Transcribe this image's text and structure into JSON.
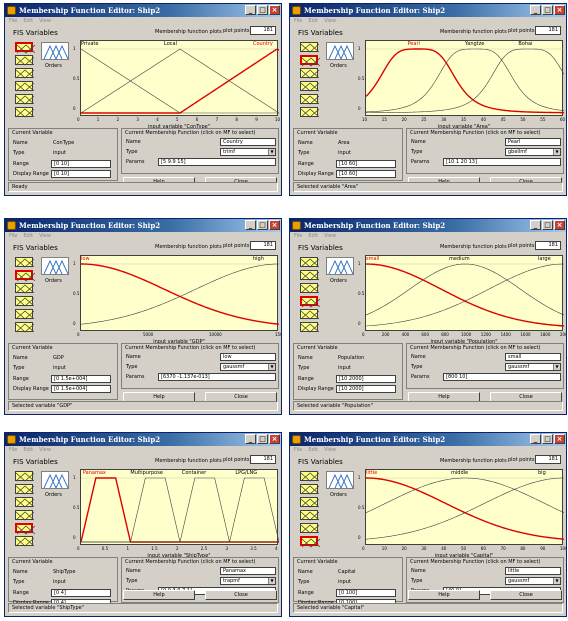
{
  "windows": [
    {
      "title": "Membership Function Editor: Ship2",
      "menu": [
        "File",
        "Edit",
        "View"
      ],
      "fis_label": "FIS Variables",
      "mf_plots_label": "Membership function plots",
      "plot_points_label": "plot points:",
      "plot_points": "181",
      "output_label": "Orders",
      "selected_var": 0,
      "x_label": "input variable \"ConType\"",
      "x_ticks": [
        "0",
        "1",
        "2",
        "3",
        "4",
        "5",
        "6",
        "7",
        "8",
        "9",
        "10"
      ],
      "y_ticks": [
        "1",
        "0.5",
        "0"
      ],
      "mf_names": [
        "Private",
        "Local",
        "Country"
      ],
      "mf_selected": 2,
      "current_var": {
        "title": "Current Variable",
        "name_label": "Name",
        "name": "ConType",
        "type_label": "Type",
        "type": "input",
        "range_label": "Range",
        "range": "[0 10]",
        "display_range_label": "Display Range",
        "display_range": "[0 10]"
      },
      "current_mf": {
        "title": "Current Membership Function (click on MF to select)",
        "name_label": "Name",
        "name": "Country",
        "type_label": "Type",
        "type": "trimf",
        "params_label": "Params",
        "params": "[5 9.9 15]"
      },
      "help": "Help",
      "close": "Close",
      "status": "Ready"
    },
    {
      "title": "Membership Function Editor: Ship2",
      "menu": [
        "File",
        "Edit",
        "View"
      ],
      "fis_label": "FIS Variables",
      "mf_plots_label": "Membership function plots",
      "plot_points_label": "plot points:",
      "plot_points": "181",
      "output_label": "Orders",
      "selected_var": 1,
      "x_label": "input variable \"Area\"",
      "x_ticks": [
        "10",
        "15",
        "20",
        "25",
        "30",
        "35",
        "40",
        "45",
        "50",
        "55",
        "60"
      ],
      "y_ticks": [
        "1",
        "0.5",
        "0"
      ],
      "mf_names": [
        "Pearl",
        "Yangtze",
        "Bohai"
      ],
      "mf_selected": 0,
      "current_var": {
        "title": "Current Variable",
        "name_label": "Name",
        "name": "Area",
        "type_label": "Type",
        "type": "input",
        "range_label": "Range",
        "range": "[10 60]",
        "display_range_label": "Display Range",
        "display_range": "[10 60]"
      },
      "current_mf": {
        "title": "Current Membership Function (click on MF to select)",
        "name_label": "Name",
        "name": "Pearl",
        "type_label": "Type",
        "type": "gbellmf",
        "params_label": "Params",
        "params": "[10 1 20 13]"
      },
      "help": "Help",
      "close": "Close",
      "status": "Selected variable \"Area\""
    },
    {
      "title": "Membership Function Editor: Ship2",
      "menu": [
        "File",
        "Edit",
        "View"
      ],
      "fis_label": "FIS Variables",
      "mf_plots_label": "Membership function plots",
      "plot_points_label": "plot points:",
      "plot_points": "181",
      "output_label": "Orders",
      "selected_var": 1,
      "x_label": "input variable \"GDP\"",
      "x_ticks": [
        "0",
        "5000",
        "10000",
        "15000"
      ],
      "y_ticks": [
        "1",
        "0.5",
        "0"
      ],
      "mf_names": [
        "low",
        "high"
      ],
      "mf_selected": 0,
      "current_var": {
        "title": "Current Variable",
        "name_label": "Name",
        "name": "GDP",
        "type_label": "Type",
        "type": "input",
        "range_label": "Range",
        "range": "[0 1.5e+004]",
        "display_range_label": "Display Range",
        "display_range": "[0 1.5e+004]"
      },
      "current_mf": {
        "title": "Current Membership Function (click on MF to select)",
        "name_label": "Name",
        "name": "low",
        "type_label": "Type",
        "type": "gaussmf",
        "params_label": "Params",
        "params": "[6370 -1.137e-013]"
      },
      "help": "Help",
      "close": "Close",
      "status": "Selected variable \"GDP\""
    },
    {
      "title": "Membership Function Editor: Ship2",
      "menu": [
        "File",
        "Edit",
        "View"
      ],
      "fis_label": "FIS Variables",
      "mf_plots_label": "Membership function plots",
      "plot_points_label": "plot points:",
      "plot_points": "181",
      "output_label": "Orders",
      "selected_var": 3,
      "x_label": "input variable \"Population\"",
      "x_ticks": [
        "0",
        "200",
        "400",
        "600",
        "800",
        "1000",
        "1200",
        "1400",
        "1600",
        "1800",
        "2000"
      ],
      "y_ticks": [
        "1",
        "0.5",
        "0"
      ],
      "mf_names": [
        "small",
        "medium",
        "large"
      ],
      "mf_selected": 0,
      "current_var": {
        "title": "Current Variable",
        "name_label": "Name",
        "name": "Population",
        "type_label": "Type",
        "type": "input",
        "range_label": "Range",
        "range": "[10 2000]",
        "display_range_label": "Display Range",
        "display_range": "[10 2000]"
      },
      "current_mf": {
        "title": "Current Membership Function (click on MF to select)",
        "name_label": "Name",
        "name": "small",
        "type_label": "Type",
        "type": "gaussmf",
        "params_label": "Params",
        "params": "[800 10]"
      },
      "help": "Help",
      "close": "Close",
      "status": "Selected variable \"Population\""
    },
    {
      "title": "Membership Function Editor: Ship2",
      "menu": [
        "File",
        "Edit",
        "View"
      ],
      "fis_label": "FIS Variables",
      "mf_plots_label": "Membership function plots",
      "plot_points_label": "plot points:",
      "plot_points": "181",
      "output_label": "Orders",
      "selected_var": 4,
      "x_label": "input variable \"ShipType\"",
      "x_ticks": [
        "0",
        "0.5",
        "1",
        "1.5",
        "2",
        "2.5",
        "3",
        "3.5",
        "4"
      ],
      "y_ticks": [
        "1",
        "0.5",
        "0"
      ],
      "mf_names": [
        "Panamax",
        "Multipurpose",
        "Container",
        "LPG/LNG"
      ],
      "mf_selected": 0,
      "current_var": {
        "title": "Current Variable",
        "name_label": "Name",
        "name": "ShipType",
        "type_label": "Type",
        "type": "input",
        "range_label": "Range",
        "range": "[0 4]",
        "display_range_label": "Display Range",
        "display_range": "[0 4]"
      },
      "current_mf": {
        "title": "Current Membership Function (click on MF to select)",
        "name_label": "Name",
        "name": "Panamax",
        "type_label": "Type",
        "type": "trapmf",
        "params_label": "Params",
        "params": "[0 0.3 0.7 1]"
      },
      "help": "Help",
      "close": "Close",
      "status": "Selected variable \"ShipType\""
    },
    {
      "title": "Membership Function Editor: Ship2",
      "menu": [
        "File",
        "Edit",
        "View"
      ],
      "fis_label": "FIS Variables",
      "mf_plots_label": "Membership function plots",
      "plot_points_label": "plot points:",
      "plot_points": "181",
      "output_label": "Orders",
      "selected_var": 5,
      "x_label": "input variable \"Capital\"",
      "x_ticks": [
        "0",
        "10",
        "20",
        "30",
        "40",
        "50",
        "60",
        "70",
        "80",
        "90",
        "100"
      ],
      "y_ticks": [
        "1",
        "0.5",
        "0"
      ],
      "mf_names": [
        "little",
        "middle",
        "big"
      ],
      "mf_selected": 0,
      "current_var": {
        "title": "Current Variable",
        "name_label": "Name",
        "name": "Capital",
        "type_label": "Type",
        "type": "input",
        "range_label": "Range",
        "range": "[0 100]",
        "display_range_label": "Display Range",
        "display_range": "[0 100]"
      },
      "current_mf": {
        "title": "Current Membership Function (click on MF to select)",
        "name_label": "Name",
        "name": "little",
        "type_label": "Type",
        "type": "gaussmf",
        "params_label": "Params",
        "params": "[40 0]"
      },
      "help": "Help",
      "close": "Close",
      "status": "Selected variable \"Capital\""
    }
  ],
  "colors": {
    "selected_mf": "#e00000",
    "plot_bg": "#ffffcc",
    "other_mf": "#404040"
  }
}
